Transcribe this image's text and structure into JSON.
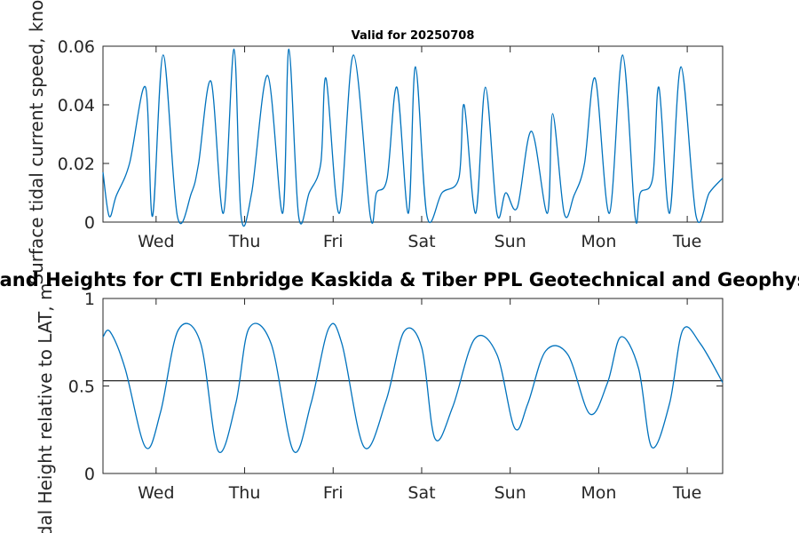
{
  "figure": {
    "title": "Currents and Heights for CTI Enbridge  Kaskida & Tiber PPL Geotechnical and Geophysical Survey",
    "subtitle": "Valid for 20250708"
  },
  "colors": {
    "series": "#0072BD",
    "axes": "#262626",
    "reference": "#262626"
  },
  "chart_data": [
    {
      "type": "line",
      "title": "Valid for 20250708",
      "xlabel": "",
      "ylabel": "Surface tidal current speed, knots",
      "x_ticks": [
        "Wed",
        "Thu",
        "Fri",
        "Sat",
        "Sun",
        "Mon",
        "Tue"
      ],
      "xlim_days": [
        -0.6,
        6.4
      ],
      "ylim": [
        0,
        0.06
      ],
      "y_ticks": [
        "0",
        "0.02",
        "0.04",
        "0.06"
      ],
      "grid": false,
      "series": [
        {
          "x": [
            -0.6,
            -0.53,
            -0.45,
            -0.3,
            -0.12,
            -0.04,
            0.08,
            0.24,
            0.4,
            0.48,
            0.62,
            0.76,
            0.88,
            0.96,
            1.08,
            1.26,
            1.43,
            1.5,
            1.61,
            1.73,
            1.86,
            1.92,
            2.07,
            2.23,
            2.42,
            2.49,
            2.61,
            2.72,
            2.85,
            2.93,
            3.06,
            3.23,
            3.42,
            3.48,
            3.61,
            3.72,
            3.85,
            3.95,
            4.08,
            4.24,
            4.42,
            4.48,
            4.61,
            4.72,
            4.84,
            4.96,
            5.12,
            5.27,
            5.41,
            5.47,
            5.61,
            5.68,
            5.8,
            5.93,
            6.1,
            6.25,
            6.4
          ],
          "y": [
            0.017,
            0.002,
            0.009,
            0.02,
            0.046,
            0.002,
            0.057,
            0.002,
            0.01,
            0.02,
            0.048,
            0.003,
            0.059,
            0.002,
            0.01,
            0.05,
            0.003,
            0.059,
            0.002,
            0.01,
            0.02,
            0.049,
            0.003,
            0.057,
            0.002,
            0.01,
            0.015,
            0.046,
            0.003,
            0.053,
            0.002,
            0.01,
            0.015,
            0.04,
            0.003,
            0.046,
            0.003,
            0.01,
            0.005,
            0.031,
            0.003,
            0.037,
            0.003,
            0.009,
            0.02,
            0.049,
            0.003,
            0.057,
            0.002,
            0.01,
            0.015,
            0.046,
            0.003,
            0.053,
            0.002,
            0.01,
            0.015
          ]
        }
      ]
    },
    {
      "type": "line",
      "title": "",
      "xlabel": "",
      "ylabel": "Tidal Height relative to LAT, m",
      "x_ticks": [
        "Wed",
        "Thu",
        "Fri",
        "Sat",
        "Sun",
        "Mon",
        "Tue"
      ],
      "xlim_days": [
        -0.6,
        6.4
      ],
      "ylim": [
        0,
        1
      ],
      "y_ticks": [
        "0",
        "0.5",
        "1"
      ],
      "grid": false,
      "reference_line": 0.53,
      "series": [
        {
          "x": [
            -0.6,
            -0.52,
            -0.35,
            -0.12,
            0.05,
            0.25,
            0.5,
            0.7,
            0.9,
            1.05,
            1.3,
            1.55,
            1.75,
            1.95,
            2.1,
            2.35,
            2.6,
            2.8,
            3.0,
            3.15,
            3.35,
            3.6,
            3.85,
            4.05,
            4.2,
            4.4,
            4.65,
            4.9,
            5.1,
            5.25,
            5.45,
            5.6,
            5.8,
            5.95,
            6.15,
            6.4
          ],
          "y": [
            0.78,
            0.81,
            0.6,
            0.15,
            0.35,
            0.82,
            0.75,
            0.13,
            0.4,
            0.83,
            0.74,
            0.13,
            0.4,
            0.83,
            0.74,
            0.15,
            0.42,
            0.81,
            0.72,
            0.2,
            0.38,
            0.77,
            0.68,
            0.26,
            0.4,
            0.7,
            0.68,
            0.34,
            0.52,
            0.78,
            0.6,
            0.15,
            0.4,
            0.82,
            0.74,
            0.52
          ]
        }
      ]
    }
  ]
}
